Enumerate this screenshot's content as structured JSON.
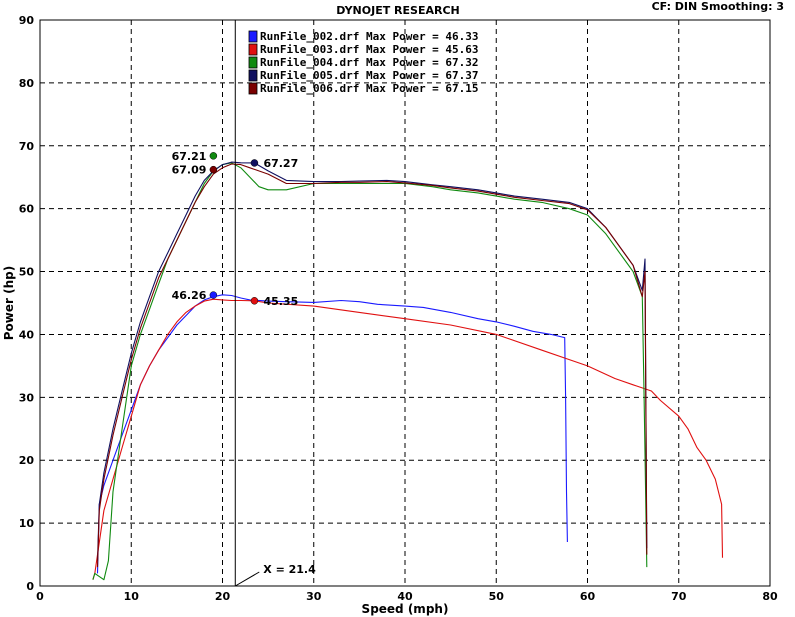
{
  "header": {
    "title": "DYNOJET RESEARCH",
    "settings": "CF: DIN  Smoothing: 3"
  },
  "colors": {
    "run_002": "#1a1aff",
    "run_003": "#e01010",
    "run_004": "#108a10",
    "run_005": "#101060",
    "run_006": "#7a0000",
    "grid": "#000000",
    "cursor": "#000000"
  },
  "chart_data": {
    "type": "line",
    "title": "DYNOJET RESEARCH",
    "xlabel": "Speed (mph)",
    "ylabel": "Power (hp)",
    "xlim": [
      0,
      80
    ],
    "ylim": [
      0,
      90
    ],
    "x_ticks": [
      0,
      10,
      20,
      30,
      40,
      50,
      60,
      70,
      80
    ],
    "y_ticks": [
      0,
      10,
      20,
      30,
      40,
      50,
      60,
      70,
      80,
      90
    ],
    "grid": true,
    "legend_position": "top-center",
    "legend": [
      {
        "label": "RunFile_002.drf Max Power = 46.33",
        "color": "#1a1aff"
      },
      {
        "label": "RunFile_003.drf Max Power = 45.63",
        "color": "#e01010"
      },
      {
        "label": "RunFile_004.drf Max Power = 67.32",
        "color": "#108a10"
      },
      {
        "label": "RunFile_005.drf Max Power = 67.37",
        "color": "#101060"
      },
      {
        "label": "RunFile_006.drf Max Power = 67.15",
        "color": "#7a0000"
      }
    ],
    "cursor": {
      "x": 21.4,
      "label": "X = 21.4"
    },
    "series": [
      {
        "name": "RunFile_002.drf",
        "color": "#1a1aff",
        "x": [
          6.3,
          6.5,
          7,
          8,
          9,
          10,
          11,
          12,
          13,
          14,
          15,
          16,
          17,
          18,
          19,
          20,
          21,
          22,
          23,
          25,
          27,
          30,
          33,
          35,
          37,
          40,
          42,
          45,
          48,
          50,
          52,
          54,
          56,
          57.5,
          57.6,
          57.7,
          57.8
        ],
        "y": [
          2,
          13,
          16,
          20,
          24,
          28,
          32,
          35,
          37.5,
          39.5,
          41.5,
          43,
          44.5,
          45.5,
          46,
          46.3,
          46.2,
          45.8,
          45.5,
          45.3,
          45.2,
          45.1,
          45.4,
          45.2,
          44.8,
          44.5,
          44.3,
          43.5,
          42.5,
          42,
          41.3,
          40.5,
          40,
          39.5,
          30,
          15,
          7
        ]
      },
      {
        "name": "RunFile_003.drf",
        "color": "#e01010",
        "x": [
          5.8,
          6,
          7,
          8,
          9,
          10,
          11,
          12,
          13,
          14,
          15,
          16,
          17,
          18,
          19,
          20,
          21,
          22,
          23.5,
          25,
          30,
          35,
          40,
          45,
          50,
          55,
          58,
          60,
          63,
          65,
          67,
          68,
          70,
          71,
          72,
          73,
          74,
          74.7,
          74.8
        ],
        "y": [
          1,
          2,
          12,
          17,
          22,
          27,
          32,
          35,
          37.5,
          40,
          42,
          43.5,
          44.5,
          45.3,
          45.6,
          45.5,
          45.4,
          45.4,
          45.35,
          45,
          44.5,
          43.5,
          42.5,
          41.5,
          40,
          37.5,
          36,
          35,
          33,
          32,
          31,
          29.5,
          27,
          25,
          22,
          20,
          17,
          13,
          4.5
        ]
      },
      {
        "name": "RunFile_004.drf",
        "color": "#108a10",
        "x": [
          5.8,
          6,
          7,
          7.5,
          8,
          9,
          10,
          11,
          12,
          13,
          14,
          15,
          16,
          17,
          18,
          19,
          20,
          21,
          22,
          23,
          24,
          25,
          27,
          30,
          33,
          35,
          38,
          40,
          43,
          45,
          48,
          50,
          52,
          55,
          58,
          60,
          62,
          63,
          64,
          65,
          65.5,
          66,
          66.2,
          66.5
        ],
        "y": [
          1,
          2,
          1,
          4,
          15,
          25,
          35,
          40,
          44,
          48,
          52,
          55,
          58,
          61,
          64,
          66,
          67,
          67.3,
          66.5,
          65,
          63.5,
          63,
          63,
          64,
          64,
          64,
          64,
          64,
          63.5,
          63,
          62.5,
          62,
          61.5,
          61,
          60,
          59,
          56,
          54,
          52,
          50,
          48,
          46,
          30,
          3
        ]
      },
      {
        "name": "RunFile_005.drf",
        "color": "#101060",
        "x": [
          6.3,
          6.5,
          7,
          8,
          9,
          10,
          11,
          12,
          13,
          14,
          15,
          16,
          17,
          18,
          19,
          20,
          21,
          22,
          23.5,
          25,
          27,
          30,
          33,
          35,
          38,
          40,
          43,
          45,
          48,
          50,
          52,
          55,
          58,
          60,
          62,
          63,
          64,
          65,
          66,
          66.3,
          66.5
        ],
        "y": [
          4,
          13,
          18,
          25,
          31,
          37,
          42,
          46,
          50,
          53,
          56,
          59,
          62,
          64.5,
          66,
          67,
          67.4,
          67.3,
          67.27,
          66,
          64.5,
          64.3,
          64.3,
          64.4,
          64.5,
          64.3,
          63.8,
          63.5,
          63,
          62.5,
          62,
          61.5,
          61,
          60,
          57,
          55,
          53,
          51,
          47,
          52,
          6
        ]
      },
      {
        "name": "RunFile_006.drf",
        "color": "#7a0000",
        "x": [
          6.3,
          6.5,
          7,
          8,
          9,
          10,
          11,
          12,
          13,
          14,
          15,
          16,
          17,
          18,
          19,
          20,
          21,
          22,
          23,
          25,
          27,
          30,
          33,
          35,
          38,
          40,
          43,
          45,
          48,
          50,
          52,
          55,
          58,
          60,
          62,
          63,
          64,
          65,
          66,
          66.3,
          66.5
        ],
        "y": [
          3,
          12,
          17,
          24,
          30,
          36,
          41,
          45,
          49,
          52,
          55,
          58,
          61,
          63.5,
          65.5,
          66.5,
          67.1,
          67,
          66.5,
          65.5,
          64,
          64,
          64.2,
          64.2,
          64.3,
          64.1,
          63.7,
          63.3,
          62.8,
          62.3,
          61.8,
          61.3,
          60.8,
          59.8,
          57,
          55,
          53,
          51,
          46,
          50,
          5
        ]
      }
    ],
    "markers": [
      {
        "series": "RunFile_002.drf",
        "x": 19,
        "y": 46.26,
        "label": "46.26",
        "side": "left",
        "color": "#1a1aff"
      },
      {
        "series": "RunFile_003.drf",
        "x": 23.5,
        "y": 45.35,
        "label": "45.35",
        "side": "right",
        "color": "#e01010"
      },
      {
        "series": "RunFile_004.drf",
        "x": 19,
        "y": 68.4,
        "label": "67.21",
        "side": "left",
        "color": "#108a10"
      },
      {
        "series": "RunFile_005.drf",
        "x": 23.5,
        "y": 67.27,
        "label": "67.27",
        "side": "right",
        "color": "#101060"
      },
      {
        "series": "RunFile_006.drf",
        "x": 19,
        "y": 66.2,
        "label": "67.09",
        "side": "left",
        "color": "#7a0000"
      }
    ]
  }
}
